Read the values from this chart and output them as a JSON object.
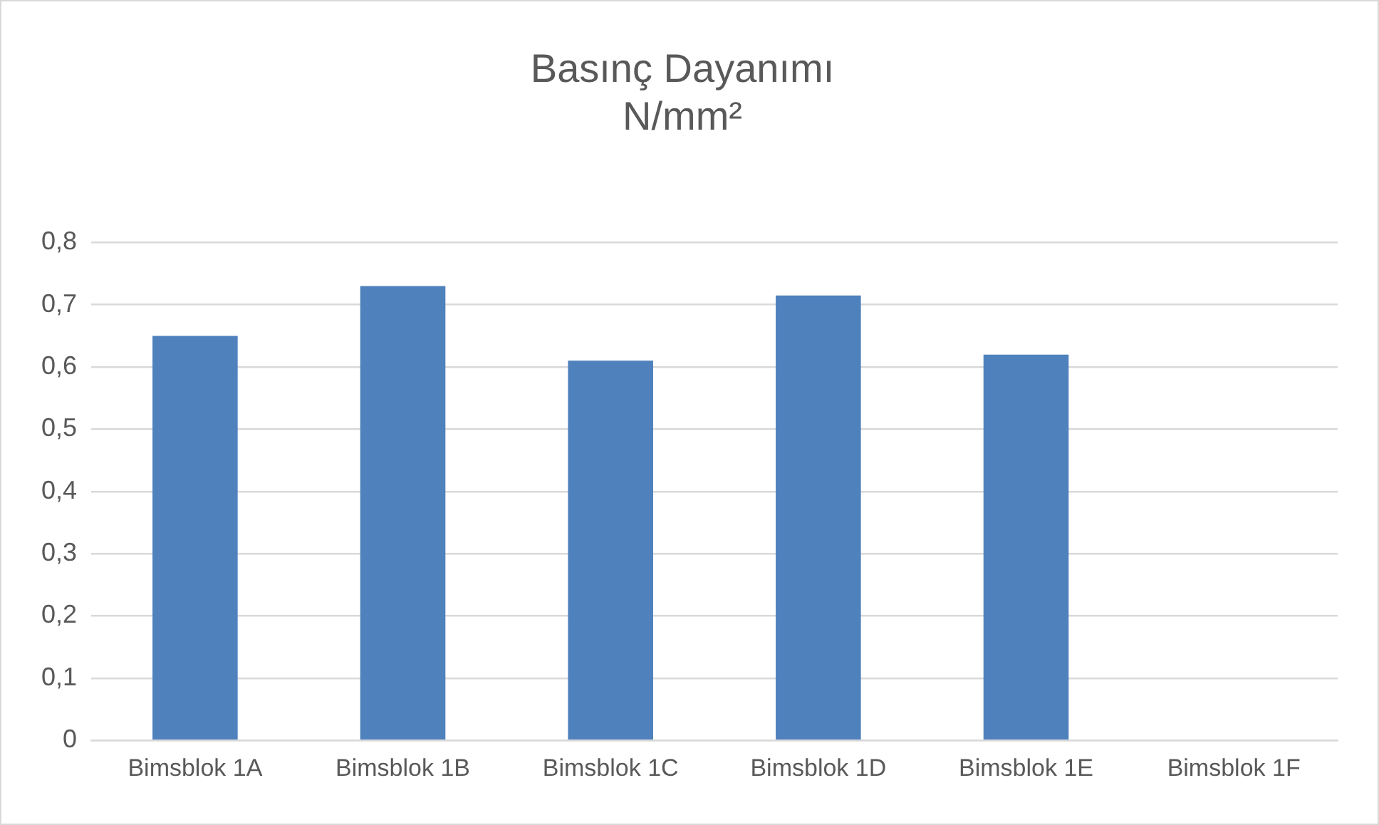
{
  "chart_data": {
    "type": "bar",
    "title": "Basınç Dayanımı",
    "subtitle": "N/mm²",
    "categories": [
      "Bimsblok 1A",
      "Bimsblok 1B",
      "Bimsblok 1C",
      "Bimsblok 1D",
      "Bimsblok 1E",
      "Bimsblok 1F"
    ],
    "values": [
      0.65,
      0.73,
      0.61,
      0.715,
      0.62,
      0
    ],
    "color": "#4f81bd",
    "ylim": [
      0,
      0.8
    ],
    "yticks": [
      0,
      {
        "value": 0.1,
        "label": "0,1"
      },
      {
        "value": 0.2,
        "label": "0,2"
      },
      {
        "value": 0.3,
        "label": "0,3"
      },
      {
        "value": 0.4,
        "label": "0,4"
      },
      {
        "value": 0.5,
        "label": "0,5"
      },
      {
        "value": 0.6,
        "label": "0,6"
      },
      {
        "value": 0.7,
        "label": "0,7"
      },
      {
        "value": 0.8,
        "label": "0,8"
      }
    ],
    "grid": "y",
    "legend": false
  }
}
